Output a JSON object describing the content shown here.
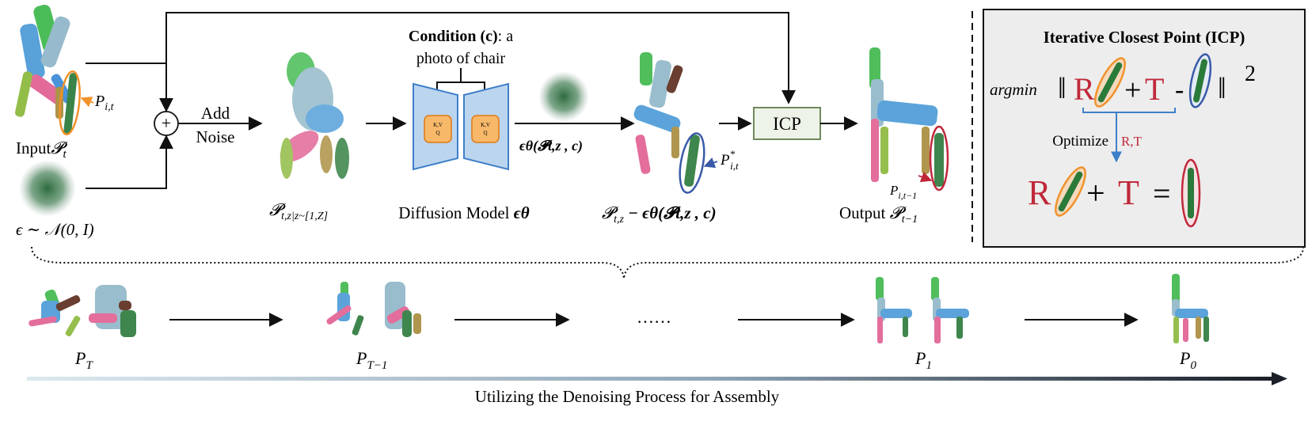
{
  "labels": {
    "input": "Input",
    "input_sym": "𝓟",
    "input_sub": "t",
    "part_P": "P",
    "part_sub": "i,t",
    "noise": "ϵ ∼ 𝒩(0, I)",
    "add_noise_1": "Add",
    "add_noise_2": "Noise",
    "plus": "+",
    "noised_sym": "𝓟",
    "noised_sub": "t,z|z~[1,Z]",
    "condition_bold": "Condition (c)",
    "condition_rest": ": a",
    "condition_line2": "photo of chair",
    "kv_top": "K,V",
    "kv_bottom": "Q",
    "diffusion_label": "Diffusion Model",
    "diffusion_eps": "ϵθ",
    "eps_output": "ϵθ(𝓟t,z , c)",
    "denoised_sym": "𝓟",
    "denoised_sub": "t,z",
    "denoised_rest": " − ϵθ(𝓟t,z , c)",
    "pstar_P": "P",
    "pstar_sup": "*",
    "pstar_sub": "i,t",
    "icp": "ICP",
    "output": "Output",
    "output_sym": "𝓟",
    "output_sub": "t−1",
    "out_part_P": "P",
    "out_part_sub": "i,t−1"
  },
  "icp_panel": {
    "title": "Iterative Closest Point (ICP)",
    "argmin": "argmin",
    "norm_open": "‖",
    "R": "R",
    "plus": "+",
    "T": "T",
    "minus": "-",
    "norm_close": "‖",
    "power": "2",
    "optimize": "Optimize",
    "rt": "R,T",
    "R2": "R",
    "plus2": "+",
    "T2": "T",
    "equals": "="
  },
  "sequence": {
    "steps": [
      {
        "P": "P",
        "sub": "T"
      },
      {
        "P": "P",
        "sub": "T−1"
      },
      {
        "P": "P",
        "sub": "1"
      },
      {
        "P": "P",
        "sub": "0"
      }
    ],
    "ellipsis": "……",
    "caption": "Utilizing the Denoising Process for Assembly"
  },
  "colors": {
    "orange": "#f0922a",
    "blue": "#3a5aa8",
    "red": "#c0283a",
    "panel_bg": "#ededed",
    "icp_box_bg": "#eef3ea",
    "icp_box_border": "#5f7d4a",
    "model_fill": "#bcd5ef",
    "model_stroke": "#3e7fc9",
    "kv_fill": "#f7b86a",
    "kv_stroke": "#e07a12",
    "arrow_blue": "#3e7fc9"
  }
}
